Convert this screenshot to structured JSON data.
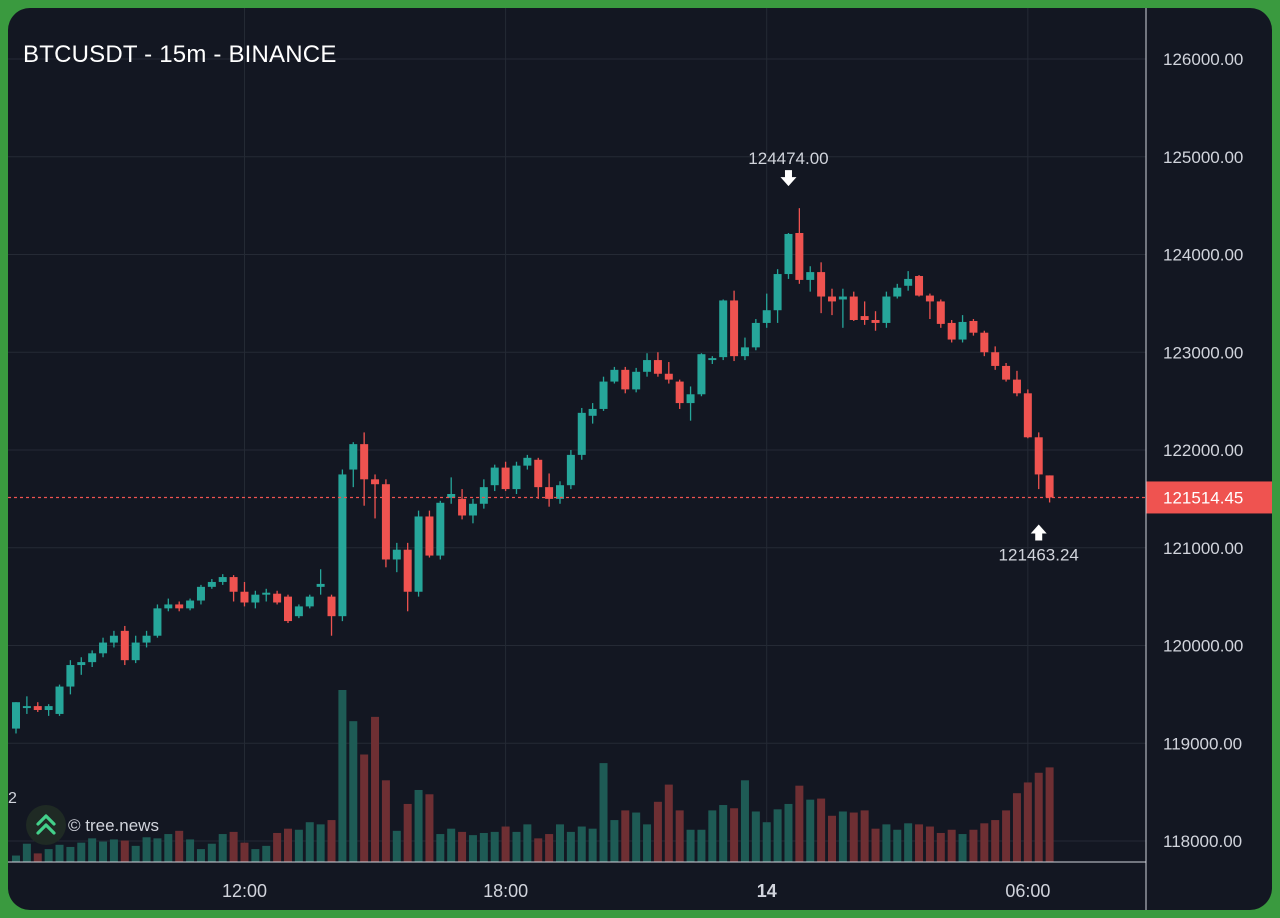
{
  "header": {
    "title": "BTCUSDT - 15m - BINANCE"
  },
  "watermark": {
    "text": "© tree.news",
    "icon": "double-chevron-up-icon"
  },
  "axis_fragment": "2",
  "colors": {
    "background": "#131722",
    "up": "#26a69a",
    "down": "#ef5350",
    "grid": "#252a35",
    "text": "#d1d4dc",
    "frame": "#3a9a3f"
  },
  "chart_data": {
    "type": "candlestick",
    "title": "BTCUSDT - 15m - BINANCE",
    "y_axis": {
      "ticks": [
        "126000.00",
        "125000.00",
        "124000.00",
        "123000.00",
        "122000.00",
        "121000.00",
        "120000.00",
        "119000.00",
        "118000.00"
      ],
      "ylim": [
        117850,
        126500
      ]
    },
    "x_axis": {
      "ticks": [
        {
          "label": "12:00",
          "candle_index": 21,
          "bold": false
        },
        {
          "label": "18:00",
          "candle_index": 45,
          "bold": false
        },
        {
          "label": "14",
          "candle_index": 69,
          "bold": true
        },
        {
          "label": "06:00",
          "candle_index": 93,
          "bold": false
        }
      ]
    },
    "last_price": {
      "value": 121514.45,
      "label": "121514.45"
    },
    "annotations": [
      {
        "type": "high",
        "label": "124474.00",
        "value": 124474,
        "candle_index": 71
      },
      {
        "type": "low",
        "label": "121463.24",
        "value": 121463.24,
        "candle_index": 94
      }
    ],
    "candles": [
      [
        119150,
        119420,
        119100,
        119420
      ],
      [
        119360,
        119480,
        119300,
        119380
      ],
      [
        119380,
        119420,
        119320,
        119340
      ],
      [
        119340,
        119400,
        119280,
        119380
      ],
      [
        119300,
        119600,
        119280,
        119580
      ],
      [
        119580,
        119850,
        119500,
        119800
      ],
      [
        119800,
        119880,
        119700,
        119830
      ],
      [
        119830,
        119950,
        119780,
        119920
      ],
      [
        119920,
        120080,
        119880,
        120030
      ],
      [
        120030,
        120150,
        119980,
        120100
      ],
      [
        120150,
        120200,
        119800,
        119850
      ],
      [
        119850,
        120100,
        119820,
        120030
      ],
      [
        120030,
        120150,
        119980,
        120100
      ],
      [
        120100,
        120420,
        120080,
        120380
      ],
      [
        120380,
        120480,
        120350,
        120420
      ],
      [
        120420,
        120450,
        120350,
        120380
      ],
      [
        120380,
        120480,
        120360,
        120460
      ],
      [
        120460,
        120620,
        120420,
        120600
      ],
      [
        120600,
        120680,
        120580,
        120650
      ],
      [
        120650,
        120730,
        120620,
        120700
      ],
      [
        120700,
        120720,
        120450,
        120550
      ],
      [
        120550,
        120650,
        120400,
        120440
      ],
      [
        120440,
        120560,
        120380,
        120520
      ],
      [
        120520,
        120580,
        120450,
        120540
      ],
      [
        120530,
        120560,
        120420,
        120440
      ],
      [
        120500,
        120520,
        120230,
        120250
      ],
      [
        120300,
        120420,
        120280,
        120400
      ],
      [
        120400,
        120520,
        120380,
        120500
      ],
      [
        120600,
        120780,
        120520,
        120630
      ],
      [
        120500,
        120520,
        120100,
        120300
      ],
      [
        120300,
        121800,
        120250,
        121750
      ],
      [
        121800,
        122080,
        121620,
        122060
      ],
      [
        122060,
        122180,
        121430,
        121700
      ],
      [
        121700,
        121750,
        121300,
        121650
      ],
      [
        121650,
        121700,
        120800,
        120880
      ],
      [
        120880,
        121050,
        120750,
        120980
      ],
      [
        120980,
        121050,
        120350,
        120550
      ],
      [
        120550,
        121380,
        120500,
        121320
      ],
      [
        121320,
        121380,
        120900,
        120920
      ],
      [
        120920,
        121480,
        120880,
        121460
      ],
      [
        121510,
        121720,
        121450,
        121550
      ],
      [
        121500,
        121600,
        121290,
        121330
      ],
      [
        121330,
        121500,
        121250,
        121450
      ],
      [
        121450,
        121700,
        121400,
        121620
      ],
      [
        121640,
        121850,
        121580,
        121820
      ],
      [
        121820,
        121880,
        121580,
        121600
      ],
      [
        121600,
        121880,
        121550,
        121840
      ],
      [
        121840,
        121950,
        121800,
        121920
      ],
      [
        121900,
        121920,
        121500,
        121620
      ],
      [
        121620,
        121760,
        121420,
        121500
      ],
      [
        121500,
        121680,
        121450,
        121640
      ],
      [
        121640,
        122000,
        121600,
        121950
      ],
      [
        121950,
        122430,
        121900,
        122380
      ],
      [
        122350,
        122480,
        122270,
        122420
      ],
      [
        122420,
        122750,
        122400,
        122700
      ],
      [
        122700,
        122850,
        122680,
        122820
      ],
      [
        122820,
        122850,
        122580,
        122620
      ],
      [
        122620,
        122840,
        122590,
        122800
      ],
      [
        122800,
        122990,
        122750,
        122920
      ],
      [
        122920,
        123000,
        122750,
        122780
      ],
      [
        122780,
        122900,
        122680,
        122720
      ],
      [
        122700,
        122720,
        122420,
        122480
      ],
      [
        122480,
        122650,
        122300,
        122570
      ],
      [
        122570,
        122990,
        122550,
        122980
      ],
      [
        122920,
        122960,
        122880,
        122940
      ],
      [
        122950,
        123540,
        122920,
        123530
      ],
      [
        123530,
        123630,
        122910,
        122960
      ],
      [
        122960,
        123150,
        122920,
        123050
      ],
      [
        123050,
        123340,
        123020,
        123300
      ],
      [
        123300,
        123600,
        123250,
        123430
      ],
      [
        123430,
        123850,
        123300,
        123800
      ],
      [
        123800,
        124220,
        123750,
        124210
      ],
      [
        124220,
        124474,
        123700,
        123740
      ],
      [
        123740,
        123880,
        123620,
        123820
      ],
      [
        123820,
        123920,
        123400,
        123570
      ],
      [
        123570,
        123650,
        123380,
        123520
      ],
      [
        123540,
        123650,
        123250,
        123570
      ],
      [
        123570,
        123620,
        123320,
        123330
      ],
      [
        123370,
        123520,
        123280,
        123330
      ],
      [
        123330,
        123420,
        123220,
        123300
      ],
      [
        123300,
        123620,
        123250,
        123570
      ],
      [
        123570,
        123700,
        123550,
        123660
      ],
      [
        123680,
        123830,
        123630,
        123750
      ],
      [
        123780,
        123790,
        123570,
        123580
      ],
      [
        123580,
        123600,
        123340,
        123520
      ],
      [
        123520,
        123540,
        123250,
        123290
      ],
      [
        123300,
        123330,
        123100,
        123130
      ],
      [
        123130,
        123380,
        123100,
        123310
      ],
      [
        123320,
        123340,
        123170,
        123200
      ],
      [
        123200,
        123220,
        122960,
        123000
      ],
      [
        123000,
        123060,
        122820,
        122860
      ],
      [
        122860,
        122890,
        122700,
        122720
      ],
      [
        122720,
        122810,
        122550,
        122580
      ],
      [
        122580,
        122620,
        122120,
        122130
      ],
      [
        122130,
        122180,
        121600,
        121750
      ],
      [
        121740,
        121740,
        121463.24,
        121514.45
      ]
    ],
    "volume_ylim": [
      0,
      800
    ],
    "volumes": [
      30,
      85,
      40,
      60,
      80,
      70,
      90,
      110,
      95,
      105,
      100,
      75,
      115,
      110,
      130,
      145,
      105,
      60,
      85,
      130,
      140,
      90,
      60,
      75,
      135,
      155,
      150,
      185,
      175,
      195,
      800,
      655,
      500,
      675,
      380,
      145,
      270,
      335,
      315,
      130,
      155,
      140,
      125,
      135,
      140,
      165,
      140,
      175,
      110,
      130,
      175,
      140,
      165,
      155,
      460,
      195,
      240,
      230,
      175,
      280,
      360,
      240,
      150,
      150,
      240,
      265,
      250,
      380,
      235,
      185,
      245,
      270,
      355,
      290,
      295,
      215,
      235,
      230,
      240,
      155,
      175,
      150,
      180,
      175,
      165,
      135,
      150,
      130,
      150,
      180,
      195,
      240,
      320,
      370,
      415,
      440
    ]
  }
}
